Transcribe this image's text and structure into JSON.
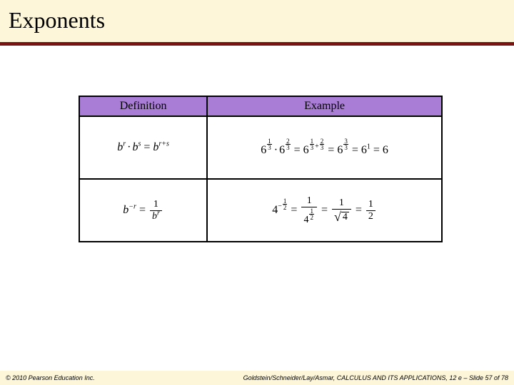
{
  "title": "Exponents",
  "colors": {
    "title_background": "#fdf6d9",
    "rule": "#7a1212",
    "header_background": "#a97cd6",
    "footer_background": "#fdf6d9"
  },
  "table": {
    "headers": {
      "definition": "Definition",
      "example": "Example"
    },
    "rows": [
      {
        "definition": {
          "type": "product-rule",
          "base": "b",
          "exp1": "r",
          "exp2": "s",
          "result_exp": "r+s",
          "display": "b^r · b^s = b^{r+s}"
        },
        "example": {
          "type": "product-rule-numeric",
          "base": 6,
          "exp1": {
            "num": 1,
            "den": 3
          },
          "exp2": {
            "num": 2,
            "den": 3
          },
          "sum_exp": {
            "num": 3,
            "den": 3
          },
          "simplified_exp": 1,
          "result": 6,
          "display": "6^{1/3} · 6^{2/3} = 6^{1/3+2/3} = 6^{3/3} = 6^1 = 6"
        }
      },
      {
        "definition": {
          "type": "negative-exponent",
          "base": "b",
          "exp": "r",
          "display": "b^{-r} = 1 / b^{r}"
        },
        "example": {
          "type": "negative-exponent-numeric",
          "base": 4,
          "exp": {
            "num": 1,
            "den": 2
          },
          "sqrt_of": 4,
          "result": {
            "num": 1,
            "den": 2
          },
          "display": "4^{-1/2} = 1 / 4^{1/2} = 1 / √4 = 1/2"
        }
      }
    ]
  },
  "footer": {
    "left": "© 2010 Pearson Education Inc.",
    "right": "Goldstein/Schneider/Lay/Asmar, CALCULUS AND ITS APPLICATIONS, 12 e – Slide 57 of 78"
  }
}
